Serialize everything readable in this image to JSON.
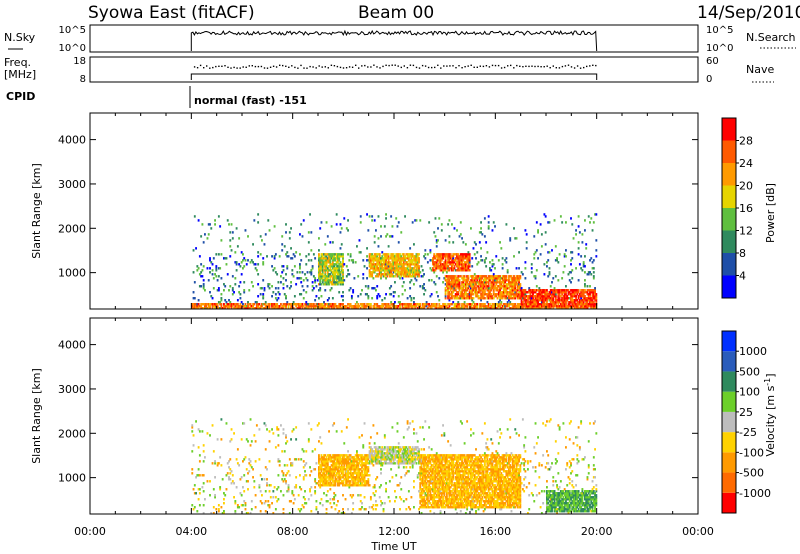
{
  "header": {
    "station": "Syowa East (fitACF)",
    "beam": "Beam 00",
    "date": "14/Sep/2010"
  },
  "sky_panel": {
    "left_label": "N.Sky",
    "left_ticks": [
      "10^5",
      "10^0"
    ],
    "right_ticks": [
      "10^5",
      "10^0"
    ],
    "right_label": "N.Search"
  },
  "freq_panel": {
    "left_label_1": "Freq.",
    "left_label_2": "[MHz]",
    "left_ticks": [
      "18",
      "8"
    ],
    "right_ticks": [
      "60",
      "0"
    ],
    "right_label": "Nave"
  },
  "cpid": {
    "label": "CPID",
    "mode": "normal (fast) -151"
  },
  "colors": {
    "power_scale": [
      "#0000ff",
      "#1e4fa8",
      "#2f8a5e",
      "#5fbf3f",
      "#e6d400",
      "#ff9a00",
      "#ff5a00",
      "#ff0000"
    ],
    "velocity_scale": [
      "#0030ff",
      "#2a5cbb",
      "#2f8a5e",
      "#6ccf2a",
      "#bdbdbd",
      "#ffd200",
      "#ff9a00",
      "#ff6a00",
      "#ff0000"
    ]
  },
  "chart_data": [
    {
      "type": "heatmap",
      "title": "",
      "ylabel": "Slant Range [km]",
      "xlabel": "",
      "ylim": [
        180,
        4600
      ],
      "xlim": [
        0,
        24
      ],
      "x_ticks": [
        "00:00",
        "04:00",
        "08:00",
        "12:00",
        "16:00",
        "20:00",
        "00:00"
      ],
      "y_ticks": [
        "1000",
        "2000",
        "3000",
        "4000"
      ],
      "data_time_range_hours": [
        4,
        20
      ],
      "colorbar": {
        "label": "Power [dB]",
        "ticks": [
          "28",
          "24",
          "20",
          "16",
          "12",
          "8",
          "4"
        ]
      },
      "features": [
        {
          "time_hours": [
            4,
            20
          ],
          "range_km": [
            180,
            300
          ],
          "power_db": 24
        },
        {
          "time_hours": [
            9,
            10
          ],
          "range_km": [
            700,
            1400
          ],
          "power_db": 16
        },
        {
          "time_hours": [
            11,
            13
          ],
          "range_km": [
            900,
            1400
          ],
          "power_db": 20
        },
        {
          "time_hours": [
            13.5,
            15
          ],
          "range_km": [
            1000,
            1400
          ],
          "power_db": 26
        },
        {
          "time_hours": [
            14,
            17
          ],
          "range_km": [
            400,
            900
          ],
          "power_db": 24
        },
        {
          "time_hours": [
            17,
            20
          ],
          "range_km": [
            200,
            600
          ],
          "power_db": 28
        }
      ]
    },
    {
      "type": "heatmap",
      "title": "",
      "ylabel": "Slant Range [km]",
      "xlabel": "Time UT",
      "ylim": [
        180,
        4600
      ],
      "xlim": [
        0,
        24
      ],
      "x_ticks": [
        "00:00",
        "04:00",
        "08:00",
        "12:00",
        "16:00",
        "20:00",
        "00:00"
      ],
      "y_ticks": [
        "1000",
        "2000",
        "3000",
        "4000"
      ],
      "data_time_range_hours": [
        4,
        20
      ],
      "colorbar": {
        "label": "Velocity [m s^-1]",
        "ticks": [
          "1000",
          "500",
          "100",
          "25",
          "-25",
          "-100",
          "-500",
          "-1000"
        ]
      },
      "features": [
        {
          "time_hours": [
            9,
            11
          ],
          "range_km": [
            800,
            1500
          ],
          "velocity_ms": -100
        },
        {
          "time_hours": [
            11,
            13
          ],
          "range_km": [
            1300,
            1700
          ],
          "velocity_ms": 0
        },
        {
          "time_hours": [
            13,
            17
          ],
          "range_km": [
            300,
            1500
          ],
          "velocity_ms": -100
        },
        {
          "time_hours": [
            18,
            20
          ],
          "range_km": [
            200,
            700
          ],
          "velocity_ms": 100
        }
      ]
    }
  ]
}
